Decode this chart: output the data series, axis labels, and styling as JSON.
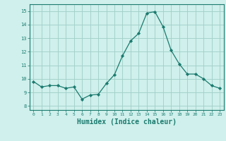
{
  "x": [
    0,
    1,
    2,
    3,
    4,
    5,
    6,
    7,
    8,
    9,
    10,
    11,
    12,
    13,
    14,
    15,
    16,
    17,
    18,
    19,
    20,
    21,
    22,
    23
  ],
  "y": [
    9.8,
    9.4,
    9.5,
    9.5,
    9.3,
    9.4,
    8.5,
    8.8,
    8.85,
    9.65,
    10.3,
    11.7,
    12.8,
    13.35,
    14.85,
    14.95,
    13.85,
    12.1,
    11.1,
    10.35,
    10.35,
    10.0,
    9.5,
    9.3
  ],
  "line_color": "#1a7a6e",
  "marker": "D",
  "marker_size": 2.2,
  "bg_color": "#cff0ec",
  "grid_color": "#a0cec8",
  "tick_color": "#1a7a6e",
  "xlabel": "Humidex (Indice chaleur)",
  "xlabel_fontsize": 7,
  "ylabel_ticks": [
    8,
    9,
    10,
    11,
    12,
    13,
    14,
    15
  ],
  "ylim": [
    7.7,
    15.5
  ],
  "xlim": [
    -0.5,
    23.5
  ]
}
